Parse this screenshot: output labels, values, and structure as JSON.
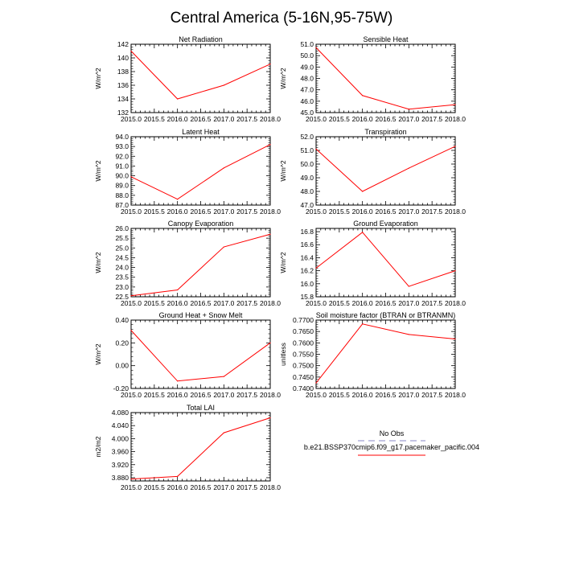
{
  "page": {
    "title": "Central America (5-16N,95-75W)"
  },
  "colors": {
    "series": "#ff0000",
    "obs": "#b0b0dc",
    "axis": "#000000"
  },
  "chart_data": [
    {
      "type": "line",
      "title": "Net Radiation",
      "ylabel": "W/m^2",
      "x": [
        2015,
        2016,
        2017,
        2018
      ],
      "values": [
        141.0,
        134.0,
        136.0,
        139.1
      ],
      "xlim": [
        2015,
        2018
      ],
      "ylim": [
        132,
        142
      ],
      "yticks": [
        132,
        134,
        136,
        138,
        140,
        142
      ],
      "ytick_labels": [
        "132",
        "134",
        "136",
        "138",
        "140",
        "142"
      ],
      "xtick_labels": [
        "2015.0",
        "2015.5",
        "2016.0",
        "2016.5",
        "2017.0",
        "2017.5",
        "2018.0"
      ]
    },
    {
      "type": "line",
      "title": "Sensible Heat",
      "ylabel": "W/m^2",
      "x": [
        2015,
        2016,
        2017,
        2018
      ],
      "values": [
        50.7,
        46.5,
        45.3,
        45.7
      ],
      "xlim": [
        2015,
        2018
      ],
      "ylim": [
        45,
        51
      ],
      "yticks": [
        45,
        46,
        47,
        48,
        49,
        50,
        51
      ],
      "ytick_labels": [
        "45.0",
        "46.0",
        "47.0",
        "48.0",
        "49.0",
        "50.0",
        "51.0"
      ],
      "xtick_labels": [
        "2015.0",
        "2015.5",
        "2016.0",
        "2016.5",
        "2017.0",
        "2017.5",
        "2018.0"
      ]
    },
    {
      "type": "line",
      "title": "Latent Heat",
      "ylabel": "W/m^2",
      "x": [
        2015,
        2016,
        2017,
        2018
      ],
      "values": [
        89.9,
        87.6,
        90.8,
        93.2
      ],
      "xlim": [
        2015,
        2018
      ],
      "ylim": [
        87,
        94
      ],
      "yticks": [
        87,
        88,
        89,
        90,
        91,
        92,
        93,
        94
      ],
      "ytick_labels": [
        "87.0",
        "88.0",
        "89.0",
        "90.0",
        "91.0",
        "92.0",
        "93.0",
        "94.0"
      ],
      "xtick_labels": [
        "2015.0",
        "2015.5",
        "2016.0",
        "2016.5",
        "2017.0",
        "2017.5",
        "2018.0"
      ]
    },
    {
      "type": "line",
      "title": "Transpiration",
      "ylabel": "W/m^2",
      "x": [
        2015,
        2016,
        2017,
        2018
      ],
      "values": [
        51.1,
        48.0,
        49.7,
        51.3
      ],
      "xlim": [
        2015,
        2018
      ],
      "ylim": [
        47,
        52
      ],
      "yticks": [
        47,
        48,
        49,
        50,
        51,
        52
      ],
      "ytick_labels": [
        "47.0",
        "48.0",
        "49.0",
        "50.0",
        "51.0",
        "52.0"
      ],
      "xtick_labels": [
        "2015.0",
        "2015.5",
        "2016.0",
        "2016.5",
        "2017.0",
        "2017.5",
        "2018.0"
      ]
    },
    {
      "type": "line",
      "title": "Canopy Evaporation",
      "ylabel": "W/m^2",
      "x": [
        2015,
        2016,
        2017,
        2018
      ],
      "values": [
        22.55,
        22.85,
        25.05,
        25.7
      ],
      "xlim": [
        2015,
        2018
      ],
      "ylim": [
        22.5,
        26
      ],
      "yticks": [
        22.5,
        23,
        23.5,
        24,
        24.5,
        25,
        25.5,
        26
      ],
      "ytick_labels": [
        "22.5",
        "23.0",
        "23.5",
        "24.0",
        "24.5",
        "25.0",
        "25.5",
        "26.0"
      ],
      "xtick_labels": [
        "2015.0",
        "2015.5",
        "2016.0",
        "2016.5",
        "2017.0",
        "2017.5",
        "2018.0"
      ]
    },
    {
      "type": "line",
      "title": "Ground Evaporation",
      "ylabel": "W/m^2",
      "x": [
        2015,
        2016,
        2017,
        2018
      ],
      "values": [
        16.24,
        16.79,
        15.96,
        16.2
      ],
      "xlim": [
        2015,
        2018
      ],
      "ylim": [
        15.8,
        16.85
      ],
      "yticks": [
        15.8,
        16.0,
        16.2,
        16.4,
        16.6,
        16.8
      ],
      "ytick_labels": [
        "15.8",
        "16.0",
        "16.2",
        "16.4",
        "16.6",
        "16.8"
      ],
      "xtick_labels": [
        "2015.0",
        "2015.5",
        "2016.0",
        "2016.5",
        "2017.0",
        "2017.5",
        "2018.0"
      ]
    },
    {
      "type": "line",
      "title": "Ground Heat + Snow Melt",
      "ylabel": "W/m^2",
      "x": [
        2015,
        2016,
        2017,
        2018
      ],
      "values": [
        0.31,
        -0.135,
        -0.095,
        0.2
      ],
      "xlim": [
        2015,
        2018
      ],
      "ylim": [
        -0.2,
        0.4
      ],
      "yticks": [
        -0.2,
        0.0,
        0.2,
        0.4
      ],
      "ytick_labels": [
        "-0.20",
        "0.00",
        "0.20",
        "0.40"
      ],
      "xtick_labels": [
        "2015.0",
        "2015.5",
        "2016.0",
        "2016.5",
        "2017.0",
        "2017.5",
        "2018.0"
      ]
    },
    {
      "type": "line",
      "title": "Soil moisture factor (BTRAN or BTRANMN)",
      "ylabel": "unitless",
      "x": [
        2015,
        2016,
        2017,
        2018
      ],
      "values": [
        0.7424,
        0.7683,
        0.7637,
        0.7617
      ],
      "xlim": [
        2015,
        2018
      ],
      "ylim": [
        0.74,
        0.77
      ],
      "yticks": [
        0.74,
        0.745,
        0.75,
        0.755,
        0.76,
        0.765,
        0.77
      ],
      "ytick_labels": [
        "0.7400",
        "0.7450",
        "0.7500",
        "0.7550",
        "0.7600",
        "0.7650",
        "0.7700"
      ],
      "xtick_labels": [
        "2015.0",
        "2015.5",
        "2016.0",
        "2016.5",
        "2017.0",
        "2017.5",
        "2018.0"
      ]
    },
    {
      "type": "line",
      "title": "Total LAI",
      "ylabel": "m2/m2",
      "x": [
        2015,
        2016,
        2017,
        2018
      ],
      "values": [
        3.876,
        3.884,
        4.018,
        4.064
      ],
      "xlim": [
        2015,
        2018
      ],
      "ylim": [
        3.87,
        4.08
      ],
      "yticks": [
        3.88,
        3.92,
        3.96,
        4.0,
        4.04,
        4.08
      ],
      "ytick_labels": [
        "3.880",
        "3.920",
        "3.960",
        "4.000",
        "4.040",
        "4.080"
      ],
      "xtick_labels": [
        "2015.0",
        "2015.5",
        "2016.0",
        "2016.5",
        "2017.0",
        "2017.5",
        "2018.0"
      ]
    }
  ],
  "legend": {
    "entries": [
      {
        "label": "No Obs",
        "style": "dashed",
        "color_key": "obs"
      },
      {
        "label": "b.e21.BSSP370cmip6.f09_g17.pacemaker_pacific.004",
        "style": "solid",
        "color_key": "series"
      }
    ]
  }
}
